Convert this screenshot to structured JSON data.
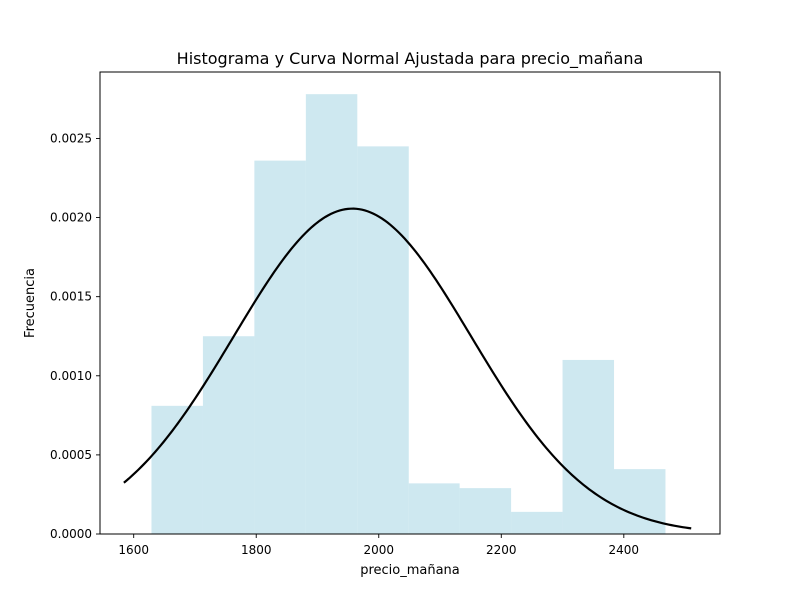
{
  "chart_data": {
    "type": "bar",
    "title": "Histograma y Curva Normal Ajustada para precio_mañana",
    "xlabel": "precio_mañana",
    "ylabel": "Frecuencia",
    "xlim": [
      1545,
      2557
    ],
    "ylim": [
      0,
      0.00292
    ],
    "xticks": [
      1600,
      1800,
      2000,
      2200,
      2400
    ],
    "xtick_labels": [
      "1600",
      "1800",
      "2000",
      "2200",
      "2400"
    ],
    "yticks": [
      0.0,
      0.0005,
      0.001,
      0.0015,
      0.002,
      0.0025
    ],
    "ytick_labels": [
      "0.0000",
      "0.0005",
      "0.0010",
      "0.0015",
      "0.0020",
      "0.0025"
    ],
    "grid": false,
    "histogram": {
      "color": "#add8e6",
      "bin_edges": [
        1629,
        1713,
        1797,
        1881,
        1965,
        2049,
        2132,
        2216,
        2300,
        2384,
        2468
      ],
      "densities": [
        0.00081,
        0.00125,
        0.00236,
        0.00278,
        0.00245,
        0.00032,
        0.00029,
        0.00014,
        0.0011,
        0.00041
      ]
    },
    "normal_curve": {
      "color": "#000000",
      "mean": 1957,
      "std": 194,
      "x_range": [
        1584,
        2510
      ]
    }
  }
}
